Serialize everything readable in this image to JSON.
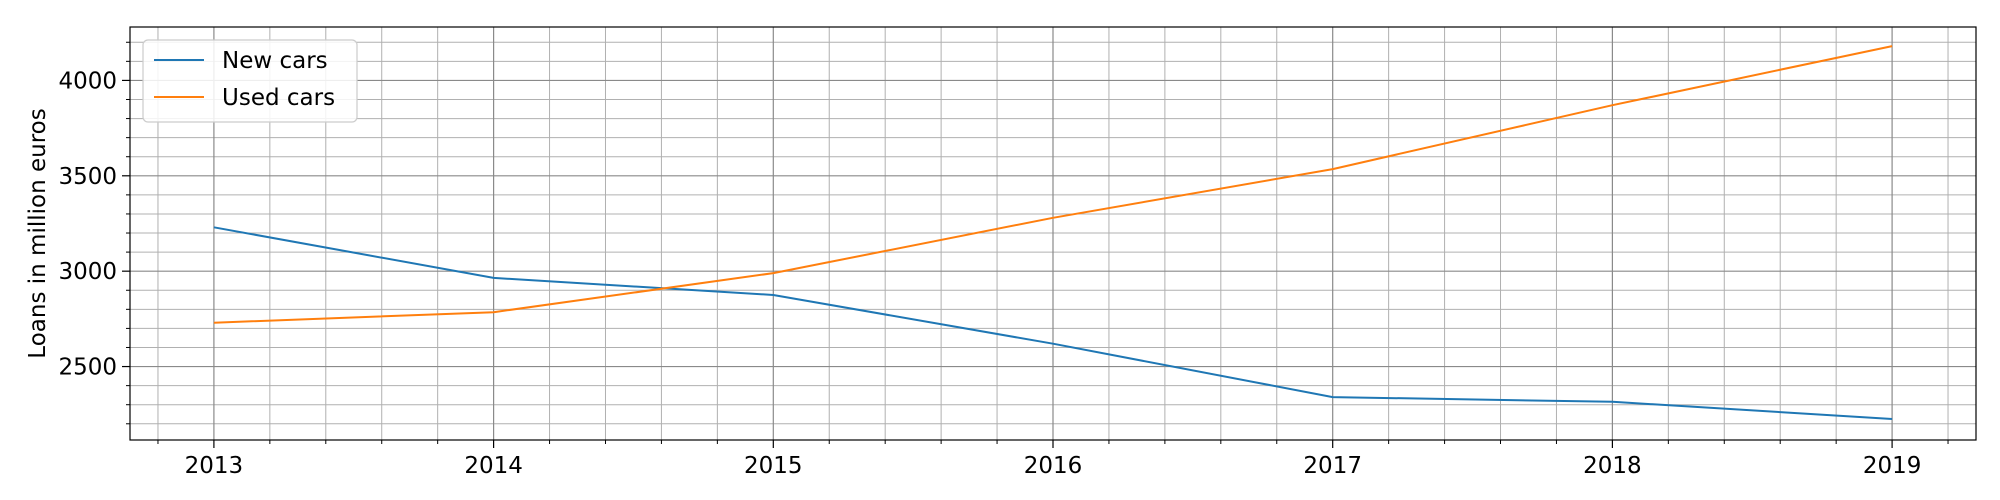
{
  "chart_data": {
    "type": "line",
    "title": "",
    "xlabel": "",
    "ylabel": "Loans in million euros",
    "x": [
      2013,
      2014,
      2015,
      2016,
      2017,
      2018,
      2019
    ],
    "series": [
      {
        "name": "New cars",
        "color": "#1f77b4",
        "values": [
          3230,
          2965,
          2875,
          2620,
          2340,
          2315,
          2225
        ]
      },
      {
        "name": "Used cars",
        "color": "#ff7f0e",
        "values": [
          2730,
          2785,
          2990,
          3280,
          3535,
          3870,
          4180
        ]
      }
    ],
    "xlim": [
      2012.7,
      2019.3
    ],
    "ylim": [
      2115,
      4280
    ],
    "xticks": [
      2013,
      2014,
      2015,
      2016,
      2017,
      2018,
      2019
    ],
    "yticks": [
      2500,
      3000,
      3500,
      4000
    ],
    "grid": true,
    "minor_grid": true,
    "legend_position": "upper-left"
  }
}
